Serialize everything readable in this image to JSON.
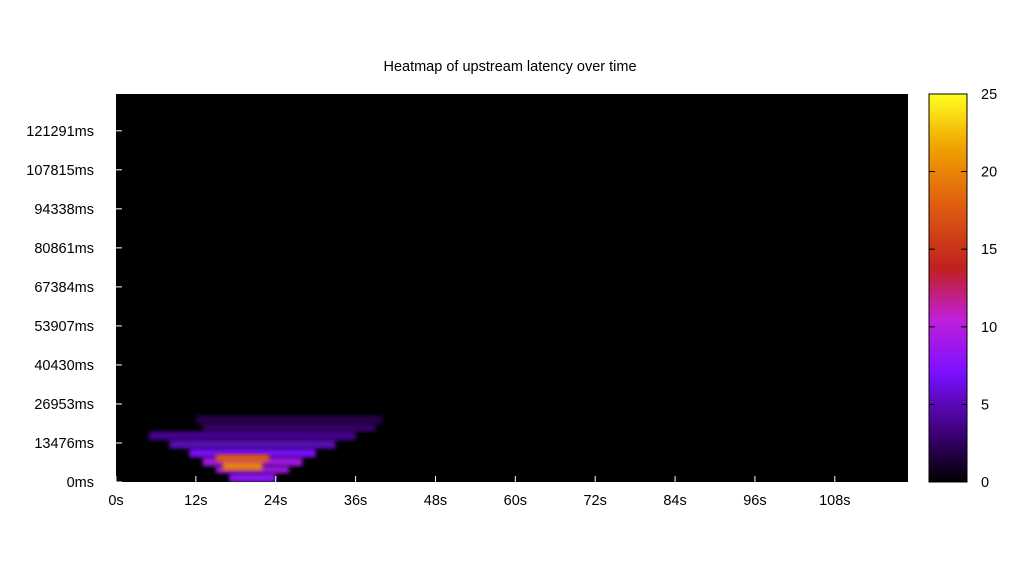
{
  "chart_data": {
    "type": "heatmap",
    "title": "Heatmap of upstream latency over time",
    "xlabel": "",
    "ylabel": "",
    "x_ticks": [
      "0s",
      "12s",
      "24s",
      "36s",
      "48s",
      "60s",
      "72s",
      "84s",
      "96s",
      "108s"
    ],
    "x_tick_values": [
      0,
      12,
      24,
      36,
      48,
      60,
      72,
      84,
      96,
      108
    ],
    "xlim": [
      0,
      119
    ],
    "y_ticks": [
      "0ms",
      "13476ms",
      "26953ms",
      "40430ms",
      "53907ms",
      "67384ms",
      "80861ms",
      "94338ms",
      "107815ms",
      "121291ms"
    ],
    "y_tick_values": [
      0,
      13476,
      26953,
      40430,
      53907,
      67384,
      80861,
      94338,
      107815,
      121291
    ],
    "ylim": [
      0,
      134000
    ],
    "colorbar": {
      "range": [
        0,
        25
      ],
      "ticks": [
        "0",
        "5",
        "10",
        "15",
        "20",
        "25"
      ],
      "tick_values": [
        0,
        5,
        10,
        15,
        20,
        25
      ],
      "palette": [
        "#000000",
        "#3a0070",
        "#7a10ff",
        "#c020d8",
        "#c02020",
        "#e06010",
        "#f0a000",
        "#ffff20"
      ],
      "palette_stops": [
        0,
        0.12,
        0.28,
        0.42,
        0.55,
        0.72,
        0.86,
        1
      ]
    },
    "background_value": 0,
    "cells": [
      {
        "t_start": 12,
        "t_end": 40,
        "lat_start": 20000,
        "lat_end": 23000,
        "value": 2
      },
      {
        "t_start": 13,
        "t_end": 39,
        "lat_start": 17500,
        "lat_end": 20000,
        "value": 3
      },
      {
        "t_start": 5,
        "t_end": 36,
        "lat_start": 14500,
        "lat_end": 17500,
        "value": 4
      },
      {
        "t_start": 8,
        "t_end": 33,
        "lat_start": 11500,
        "lat_end": 14500,
        "value": 5
      },
      {
        "t_start": 11,
        "t_end": 30,
        "lat_start": 8500,
        "lat_end": 11500,
        "value": 7
      },
      {
        "t_start": 13,
        "t_end": 28,
        "lat_start": 5500,
        "lat_end": 8500,
        "value": 9
      },
      {
        "t_start": 15,
        "t_end": 26,
        "lat_start": 3000,
        "lat_end": 5500,
        "value": 9
      },
      {
        "t_start": 17,
        "t_end": 24,
        "lat_start": 0,
        "lat_end": 3000,
        "value": 8
      },
      {
        "t_start": 15,
        "t_end": 23,
        "lat_start": 7000,
        "lat_end": 9500,
        "value": 18
      },
      {
        "t_start": 16,
        "t_end": 22,
        "lat_start": 4000,
        "lat_end": 7000,
        "value": 20
      }
    ]
  }
}
